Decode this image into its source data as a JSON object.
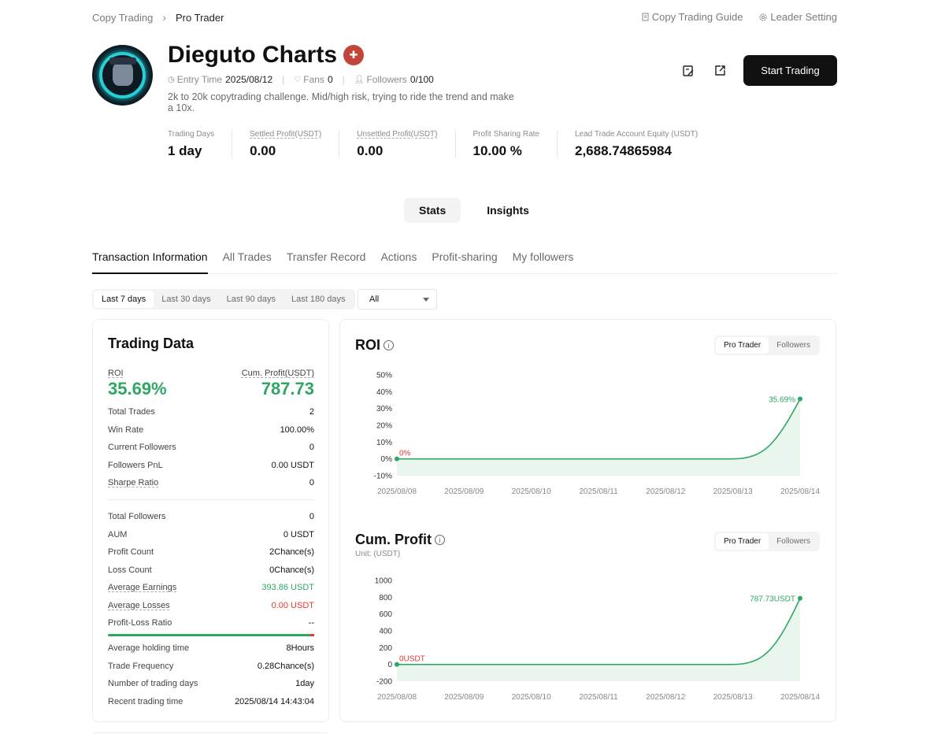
{
  "breadcrumb": {
    "parent": "Copy Trading",
    "current": "Pro Trader"
  },
  "toplinks": {
    "guide": "Copy Trading Guide",
    "leader": "Leader Setting"
  },
  "profile": {
    "name": "Dieguto Charts",
    "entry_label": "Entry Time",
    "entry_value": "2025/08/12",
    "fans_label": "Fans",
    "fans_value": "0",
    "followers_label": "Followers",
    "followers_value": "0/100",
    "description": "2k to 20k copytrading challenge. Mid/high risk, trying to ride the trend and make a 10x."
  },
  "actions": {
    "start": "Start Trading"
  },
  "stats": [
    {
      "label": "Trading Days",
      "value": "1 day"
    },
    {
      "label": "Settled Profit(USDT)",
      "value": "0.00"
    },
    {
      "label": "Unsettled Profit(USDT)",
      "value": "0.00"
    },
    {
      "label": "Profit Sharing Rate",
      "value": "10.00 %"
    },
    {
      "label": "Lead Trade Account Equity (USDT)",
      "value": "2,688.74865984"
    }
  ],
  "view_tabs": [
    "Stats",
    "Insights"
  ],
  "sub_tabs": [
    "Transaction Information",
    "All Trades",
    "Transfer Record",
    "Actions",
    "Profit-sharing",
    "My followers"
  ],
  "periods": [
    "Last 7 days",
    "Last 30 days",
    "Last 90 days",
    "Last 180 days"
  ],
  "filter": {
    "selected": "All"
  },
  "trading_data": {
    "title": "Trading Data",
    "roi_label": "ROI",
    "roi_value": "35.69%",
    "cum_label": "Cum. Profit(USDT)",
    "cum_value": "787.73",
    "rows_a": [
      {
        "label": "Total Trades",
        "value": "2"
      },
      {
        "label": "Win Rate",
        "value": "100.00%"
      },
      {
        "label": "Current Followers",
        "value": "0"
      },
      {
        "label": "Followers PnL",
        "value": "0.00 USDT"
      },
      {
        "label": "Sharpe Ratio",
        "value": "0"
      }
    ],
    "rows_b": [
      {
        "label": "Total Followers",
        "value": "0"
      },
      {
        "label": "AUM",
        "value": "0 USDT"
      },
      {
        "label": "Profit Count",
        "value": "2Chance(s)"
      },
      {
        "label": "Loss Count",
        "value": "0Chance(s)"
      },
      {
        "label": "Average Earnings",
        "value": "393.86 USDT"
      },
      {
        "label": "Average Losses",
        "value": "0.00 USDT"
      },
      {
        "label": "Profit-Loss Ratio",
        "value": "--"
      }
    ],
    "profit_loss_ratio_win_fraction": 0.98,
    "rows_c": [
      {
        "label": "Average holding time",
        "value": "8Hours"
      },
      {
        "label": "Trade Frequency",
        "value": "0.28Chance(s)"
      },
      {
        "label": "Number of trading days",
        "value": "1day"
      },
      {
        "label": "Recent trading time",
        "value": "2025/08/14 14:43:04"
      }
    ]
  },
  "chart_toggle": {
    "pro": "Pro Trader",
    "followers": "Followers"
  },
  "roi_chart_title": "ROI",
  "cum_chart_title": "Cum. Profit",
  "cum_unit": "Unit:   (USDT)",
  "colors": {
    "green": "#2fa763",
    "red": "#e53935",
    "fill": "#e9f6ee"
  },
  "chart_data": [
    {
      "type": "area",
      "title": "ROI",
      "x": [
        "2025/08/08",
        "2025/08/09",
        "2025/08/10",
        "2025/08/11",
        "2025/08/12",
        "2025/08/13",
        "2025/08/14"
      ],
      "y": [
        0,
        0,
        0,
        0,
        0,
        0,
        35.69
      ],
      "ylim": [
        -10,
        50
      ],
      "yticks": [
        "50%",
        "40%",
        "30%",
        "20%",
        "10%",
        "0%",
        "-10%"
      ],
      "ytick_values": [
        50,
        40,
        30,
        20,
        10,
        0,
        -10
      ],
      "start_label": "0%",
      "end_label": "35.69%"
    },
    {
      "type": "area",
      "title": "Cum. Profit",
      "x": [
        "2025/08/08",
        "2025/08/09",
        "2025/08/10",
        "2025/08/11",
        "2025/08/12",
        "2025/08/13",
        "2025/08/14"
      ],
      "y": [
        0,
        0,
        0,
        0,
        0,
        0,
        787.73
      ],
      "ylim": [
        -200,
        1000
      ],
      "yticks": [
        "1000",
        "800",
        "600",
        "400",
        "200",
        "0",
        "-200"
      ],
      "ytick_values": [
        1000,
        800,
        600,
        400,
        200,
        0,
        -200
      ],
      "start_label": "0USDT",
      "end_label": "787.73USDT"
    }
  ]
}
